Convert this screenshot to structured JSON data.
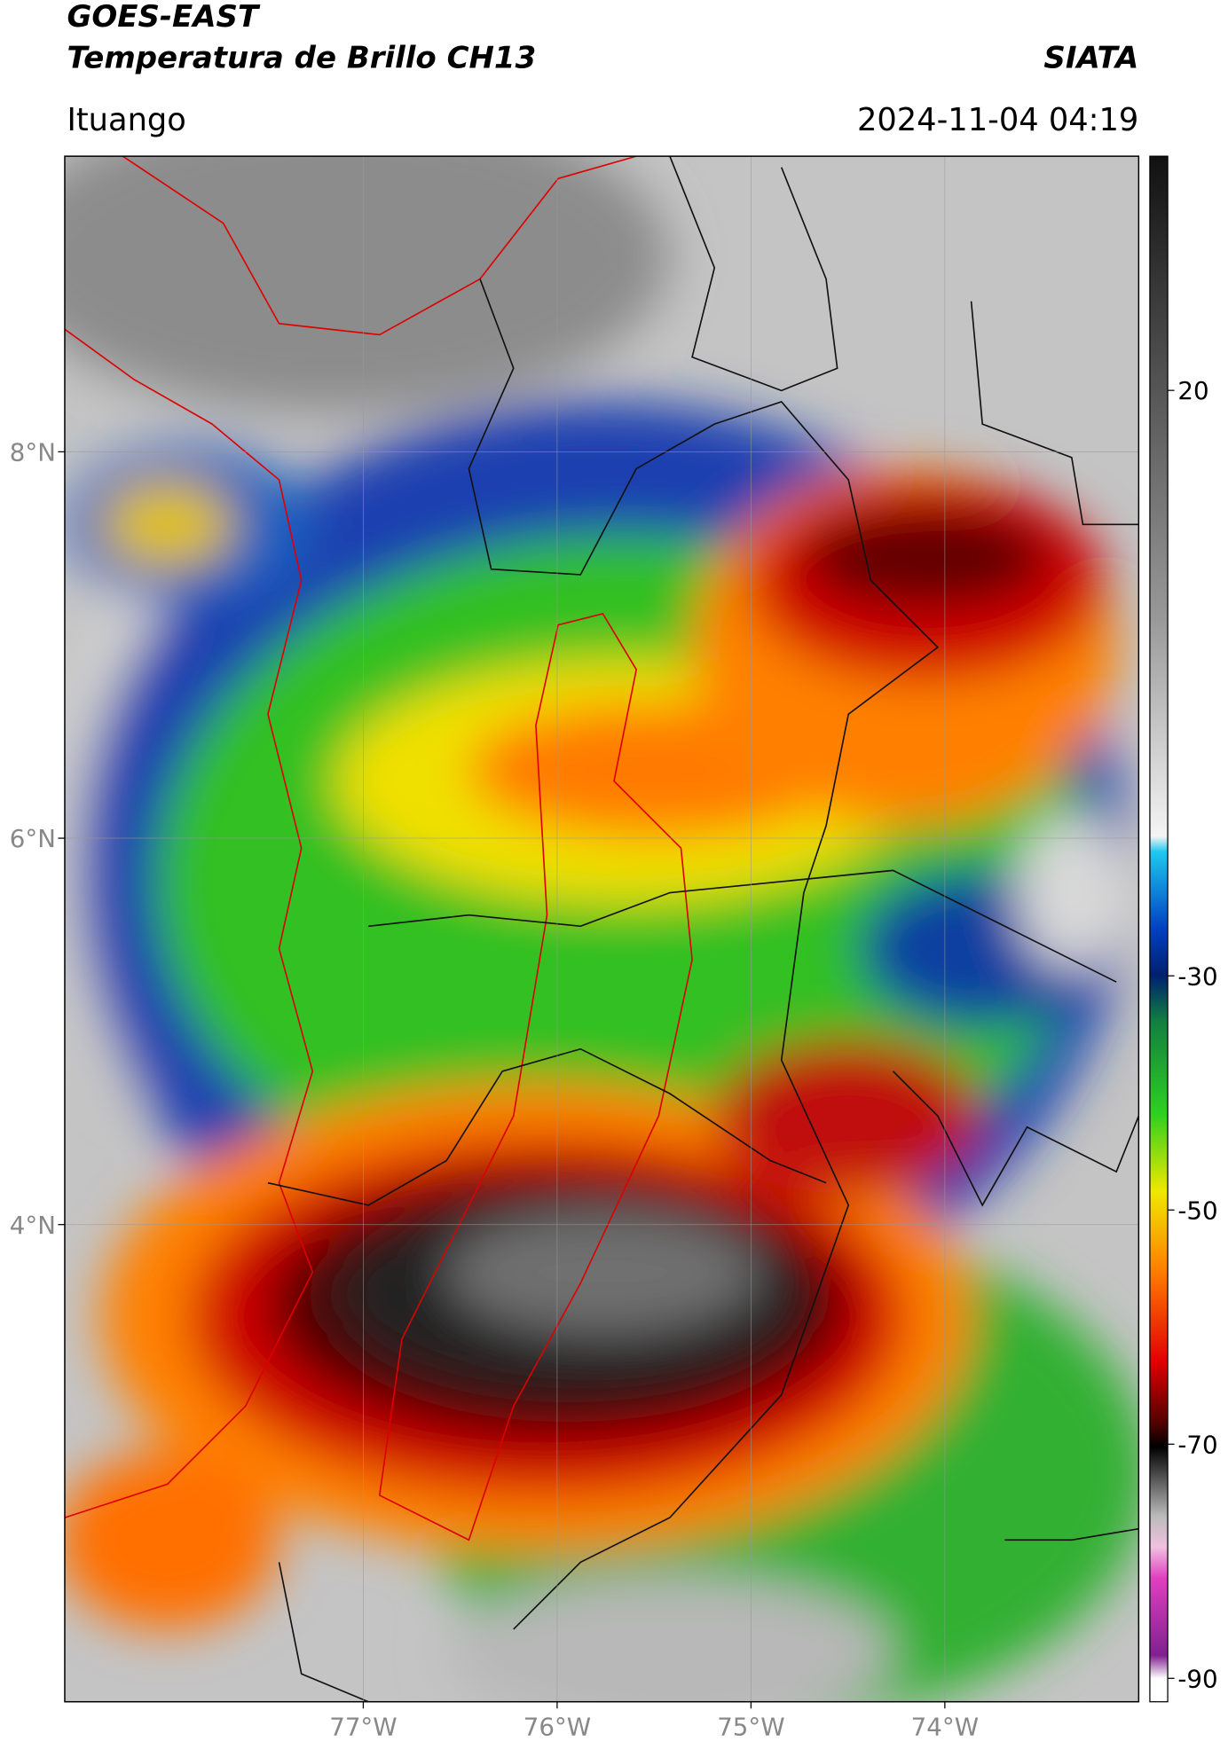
{
  "header": {
    "title": "GOES-EAST",
    "subtitle": "Temperatura de Brillo CH13",
    "agency": "SIATA",
    "location": "Ituango",
    "datetime": "2024-11-04 04:19"
  },
  "map": {
    "lon_range": [
      -78.54,
      -73.0
    ],
    "lat_range": [
      1.53,
      9.53
    ],
    "grid": true,
    "lon_ticks": [
      {
        "value": -77,
        "label": "77°W"
      },
      {
        "value": -76,
        "label": "76°W"
      },
      {
        "value": -75,
        "label": "75°W"
      },
      {
        "value": -74,
        "label": "74°W"
      }
    ],
    "lat_ticks": [
      {
        "value": 8,
        "label": "8°N"
      },
      {
        "value": 6,
        "label": "6°N"
      },
      {
        "value": 4,
        "label": "4°N"
      }
    ]
  },
  "colorbar": {
    "range": [
      -92,
      40
    ],
    "ticks": [
      20,
      -30,
      -50,
      -70,
      -90
    ]
  }
}
